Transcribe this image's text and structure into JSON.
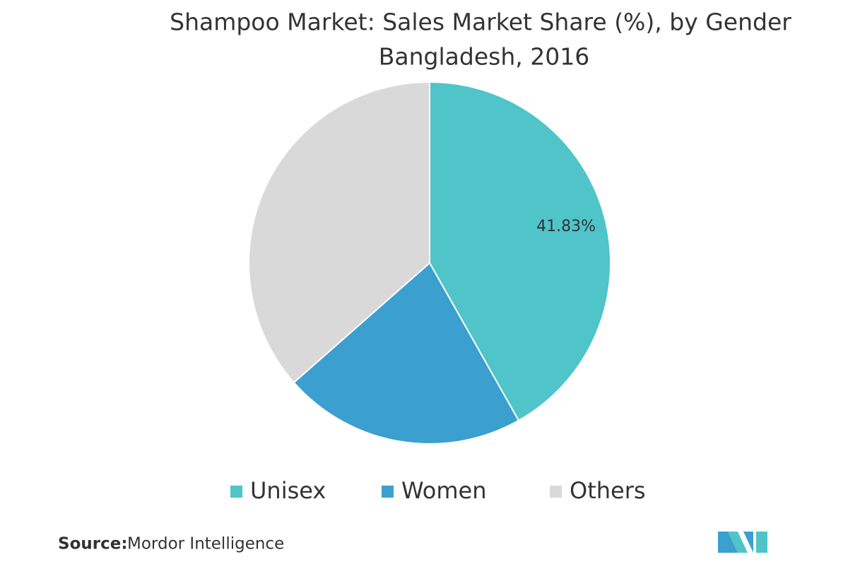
{
  "chart_data": {
    "type": "pie",
    "title": "Shampoo Market: Sales Market Share (%), by Gender",
    "subtitle": "Bangladesh, 2016",
    "categories": [
      "Unisex",
      "Women",
      "Others"
    ],
    "values": [
      41.83,
      21.7,
      36.5
    ],
    "value_labels": [
      "41.83%",
      null,
      null
    ],
    "colors": [
      "#4fc4c9",
      "#3b9fd0",
      "#d9d9d9"
    ],
    "source_label": "Source:",
    "source": "Mordor Intelligence"
  }
}
